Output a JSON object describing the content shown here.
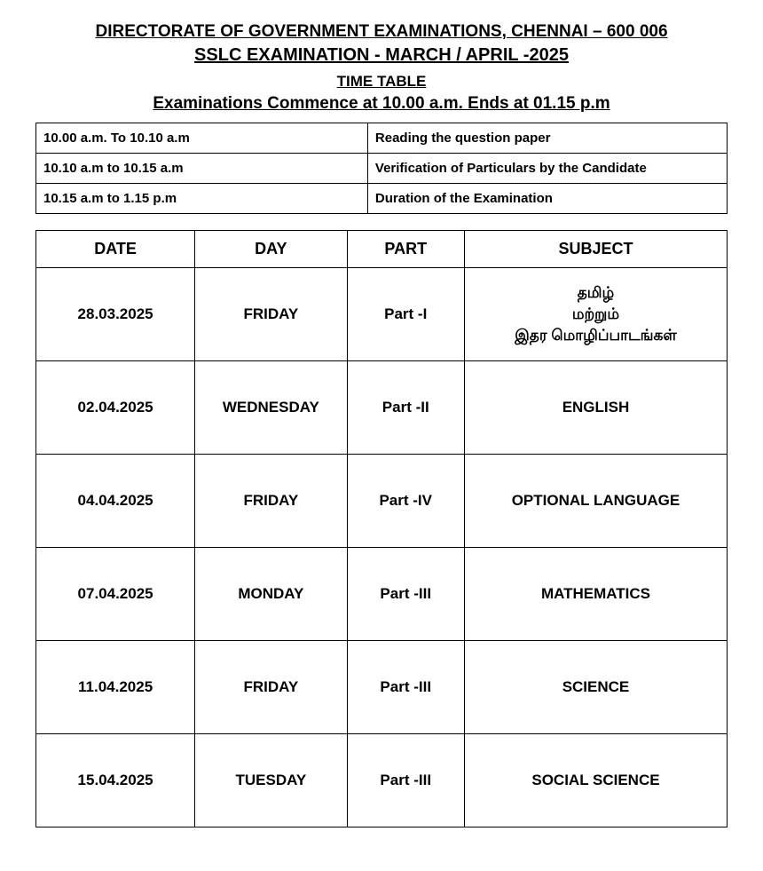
{
  "header": {
    "directorate": "DIRECTORATE OF GOVERNMENT EXAMINATIONS, CHENNAI – 600 006",
    "exam_title": "SSLC EXAMINATION - MARCH / APRIL -2025",
    "time_table_label": "TIME TABLE",
    "commence_text": "Examinations Commence at 10.00 a.m. Ends at 01.15 p.m"
  },
  "timing_rows": [
    {
      "time": "10.00 a.m. To 10.10 a.m",
      "activity": "Reading the question paper"
    },
    {
      "time": "10.10 a.m to 10.15 a.m",
      "activity": "Verification of Particulars by the Candidate"
    },
    {
      "time": "10.15 a.m to 1.15 p.m",
      "activity": "Duration of the Examination"
    }
  ],
  "schedule": {
    "columns": [
      "DATE",
      "DAY",
      "PART",
      "SUBJECT"
    ],
    "rows": [
      {
        "date": "28.03.2025",
        "day": "FRIDAY",
        "part": "Part -I",
        "subject": "தமிழ்\nமற்றும்\nஇதர மொழிப்பாடங்கள்"
      },
      {
        "date": "02.04.2025",
        "day": "WEDNESDAY",
        "part": "Part -II",
        "subject": "ENGLISH"
      },
      {
        "date": "04.04.2025",
        "day": "FRIDAY",
        "part": "Part -IV",
        "subject": "OPTIONAL LANGUAGE"
      },
      {
        "date": "07.04.2025",
        "day": "MONDAY",
        "part": "Part -III",
        "subject": "MATHEMATICS"
      },
      {
        "date": "11.04.2025",
        "day": "FRIDAY",
        "part": "Part -III",
        "subject": "SCIENCE"
      },
      {
        "date": "15.04.2025",
        "day": "TUESDAY",
        "part": "Part -III",
        "subject": "SOCIAL SCIENCE"
      }
    ]
  }
}
